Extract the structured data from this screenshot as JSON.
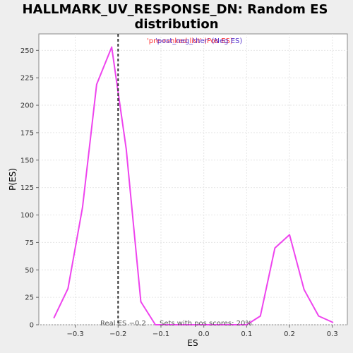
{
  "chart_data": {
    "type": "line",
    "title_line1": "HALLMARK_UV_RESPONSE_DN: Random ES",
    "title_line2": "distribution",
    "xlabel": "ES",
    "ylabel": "P(ES)",
    "xlim": [
      -0.385,
      0.335
    ],
    "ylim": [
      0,
      265
    ],
    "xticks": [
      "−0.3",
      "−0.2",
      "−0.1",
      "0.0",
      "0.1",
      "0.2",
      "0.3"
    ],
    "xtick_values": [
      -0.3,
      -0.2,
      -0.1,
      0.0,
      0.1,
      0.2,
      0.3
    ],
    "yticks": [
      "0",
      "25",
      "50",
      "75",
      "100",
      "125",
      "150",
      "175",
      "200",
      "225",
      "250"
    ],
    "ytick_values": [
      0,
      25,
      50,
      75,
      100,
      125,
      150,
      175,
      200,
      225,
      250
    ],
    "grid": true,
    "legend": [
      {
        "text": "'pre-ranked list' (Pos ES)",
        "color": "#ff3333"
      },
      {
        "text": "'post_neg_ther' (Neg ES)",
        "color": "#5533cc"
      }
    ],
    "series": [
      {
        "color": "#ee44ee",
        "x": [
          -0.35,
          -0.317,
          -0.283,
          -0.25,
          -0.215,
          -0.181,
          -0.147,
          -0.113,
          -0.08,
          0.1,
          0.132,
          0.166,
          0.2,
          0.234,
          0.268,
          0.302
        ],
        "y": [
          6,
          33,
          107,
          219,
          253,
          160,
          21,
          0,
          0,
          0,
          8,
          70,
          82,
          32,
          8,
          2
        ]
      }
    ],
    "real_es": -0.2,
    "real_es_label": "Real ES −0.2",
    "pos_scores_label": "Sets with pos scores: 20%"
  }
}
